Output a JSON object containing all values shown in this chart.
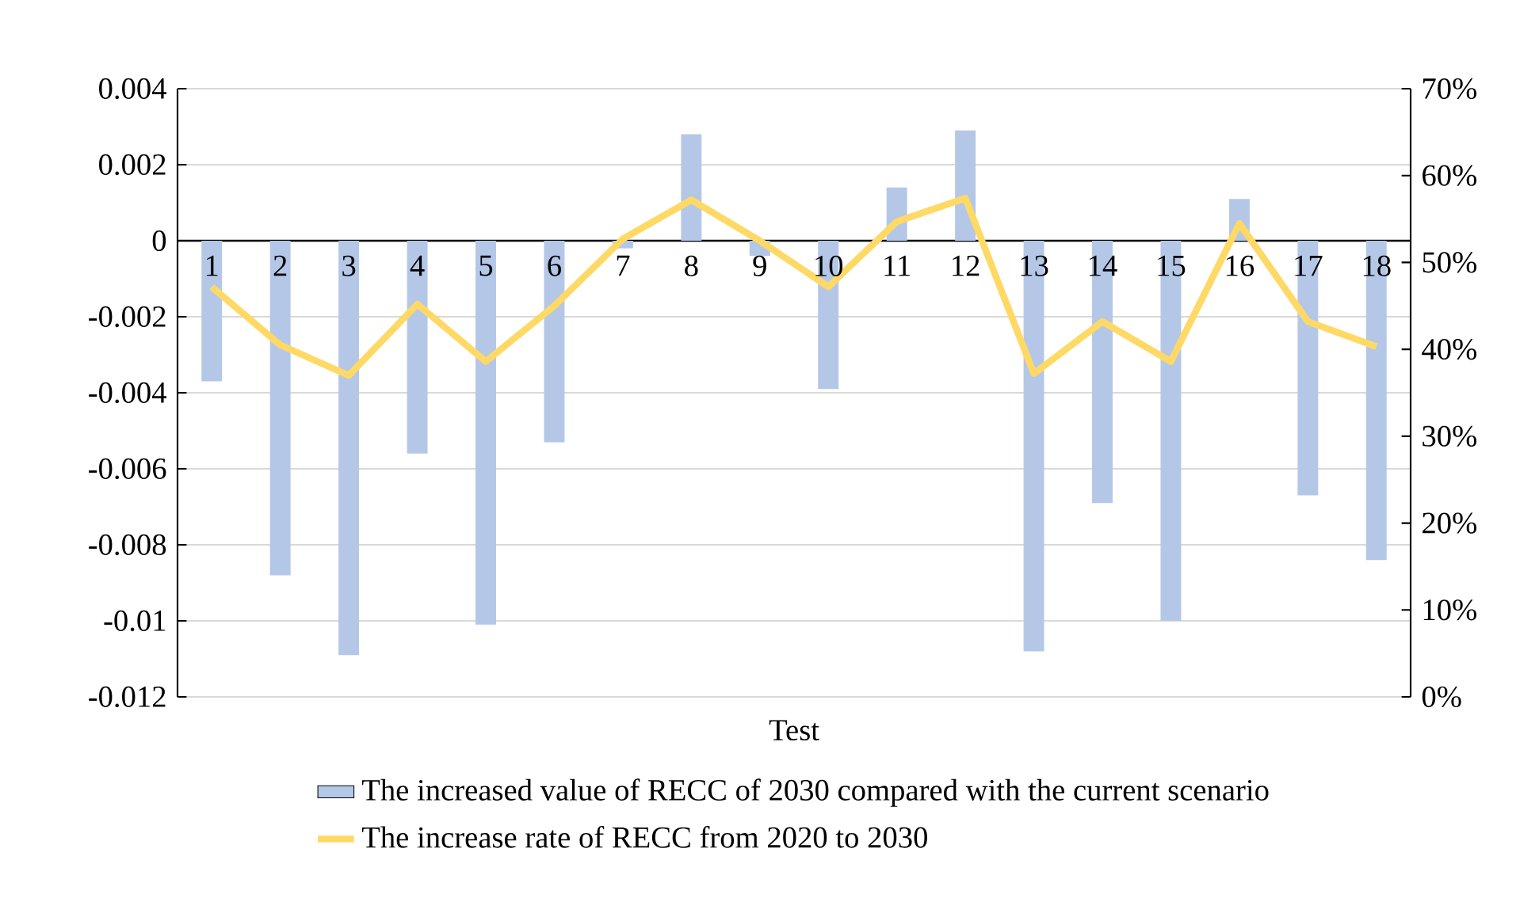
{
  "chart_data": {
    "type": "bar",
    "xlabel": "Test",
    "categories": [
      "1",
      "2",
      "3",
      "4",
      "5",
      "6",
      "7",
      "8",
      "9",
      "10",
      "11",
      "12",
      "13",
      "14",
      "15",
      "16",
      "17",
      "18"
    ],
    "series": [
      {
        "name": "The increased value of RECC of 2030 compared with the current scenario",
        "color": "#b4c7e7",
        "values": [
          -0.0037,
          -0.0088,
          -0.0109,
          -0.0056,
          -0.0101,
          -0.0053,
          -0.0002,
          0.0028,
          -0.0004,
          -0.0039,
          0.0014,
          0.0029,
          -0.0108,
          -0.0069,
          -0.01,
          0.0011,
          -0.0067,
          -0.0084
        ]
      },
      {
        "name": "The increase rate of RECC from 2020 to 2030",
        "type": "line",
        "axis": "y2",
        "color": "#ffd966",
        "values": [
          47.2,
          40.5,
          37.0,
          45.2,
          38.6,
          45.0,
          52.7,
          57.2,
          52.5,
          47.2,
          54.7,
          57.4,
          37.2,
          43.2,
          38.6,
          54.5,
          43.2,
          40.3
        ]
      }
    ],
    "ylim": [
      -0.012,
      0.004
    ],
    "yticks": [
      -0.012,
      -0.01,
      -0.008,
      -0.006,
      -0.004,
      -0.002,
      0,
      0.002,
      0.004
    ],
    "y2lim": [
      0,
      70
    ],
    "y2ticks": [
      {
        "value": 0,
        "label": "0%"
      },
      {
        "value": 10,
        "label": "10%"
      },
      {
        "value": 20,
        "label": "20%"
      },
      {
        "value": 30,
        "label": "30%"
      },
      {
        "value": 40,
        "label": "40%"
      },
      {
        "value": 50,
        "label": "50%"
      },
      {
        "value": 60,
        "label": "60%"
      },
      {
        "value": 70,
        "label": "70%"
      }
    ],
    "grid": "y",
    "legend": "bottom",
    "marker": "none"
  }
}
